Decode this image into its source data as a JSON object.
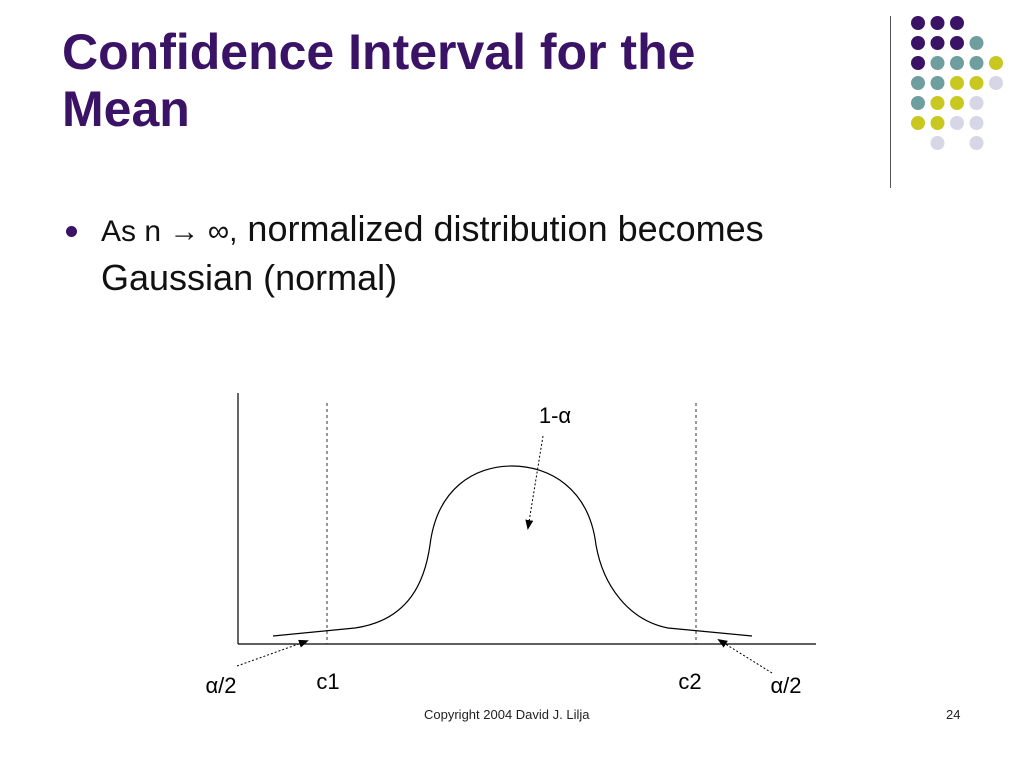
{
  "slide": {
    "title_line1": "Confidence Interval for the",
    "title_line2": "Mean",
    "bullet": {
      "prefix": "As n → ∞,",
      "text": " normalized distribution becomes Gaussian (normal)"
    },
    "footer_copyright": "Copyright 2004 David J. Lilja",
    "page_number": "24"
  },
  "diagram": {
    "center_label": "1-α",
    "left_tail_label": "α/2",
    "right_tail_label": "α/2",
    "left_critical_label": "c1",
    "right_critical_label": "c2"
  },
  "colors": {
    "title": "#3a1266",
    "purple": "#3a1266",
    "teal": "#6f9e9e",
    "yellow": "#c9c820",
    "lavender": "#d6d6e6"
  },
  "decoration": {
    "dot_grid_colors": [
      [
        "purple",
        "purple",
        "purple",
        null,
        null
      ],
      [
        "purple",
        "purple",
        "purple",
        "teal",
        null
      ],
      [
        "purple",
        "teal",
        "teal",
        "teal",
        "yellow"
      ],
      [
        "teal",
        "teal",
        "yellow",
        "yellow",
        "lavender"
      ],
      [
        "teal",
        "yellow",
        "yellow",
        "lavender",
        null
      ],
      [
        "yellow",
        "yellow",
        "lavender",
        "lavender",
        null
      ],
      [
        null,
        "lavender",
        null,
        "lavender",
        null
      ]
    ]
  }
}
